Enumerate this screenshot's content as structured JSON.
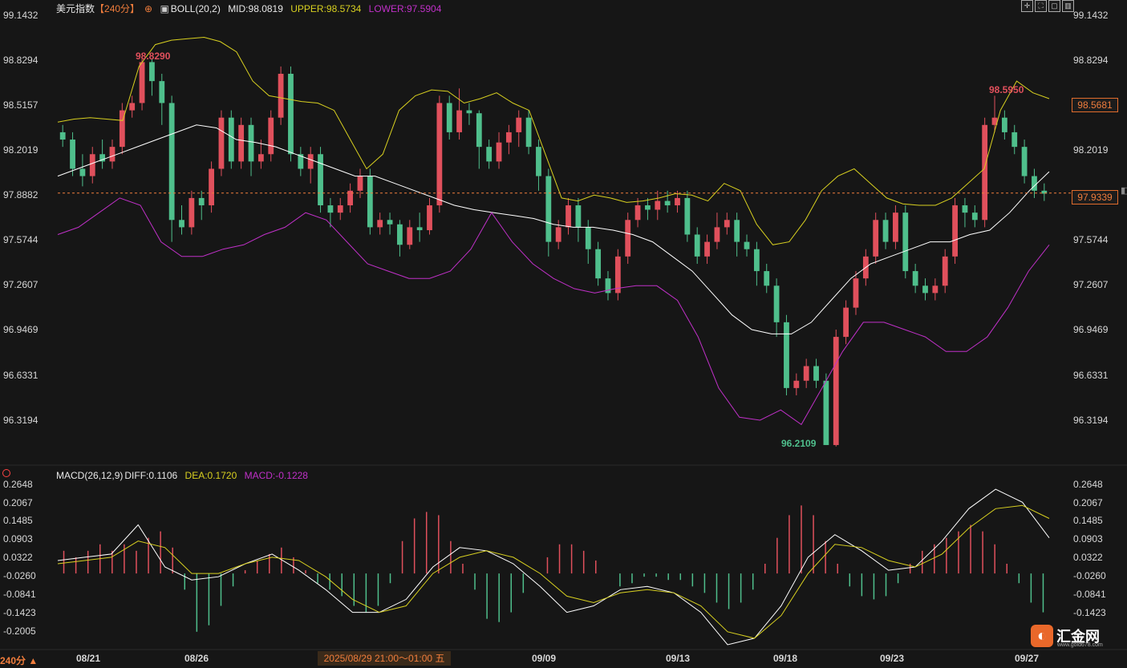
{
  "header": {
    "instrument": "美元指数",
    "period": "【240分】",
    "boll_label": "BOLL(20,2)",
    "mid": "MID:98.0819",
    "upper": "UPPER:98.5734",
    "lower": "LOWER:97.5904"
  },
  "macd_header": {
    "label": "MACD(26,12,9)",
    "diff": "DIFF:0.1106",
    "dea": "DEA:0.1720",
    "macd": "MACD:-0.1228"
  },
  "price_ticks": [
    "99.1432",
    "98.8294",
    "98.5157",
    "98.2019",
    "97.8882",
    "97.5744",
    "97.2607",
    "96.9469",
    "96.6331",
    "96.3194"
  ],
  "macd_ticks": [
    "0.2648",
    "0.2067",
    "0.1485",
    "0.0903",
    "0.0322",
    "-0.0260",
    "-0.0841",
    "-0.1423",
    "-0.2005"
  ],
  "dates": [
    "08/21",
    "08/26",
    "09/09",
    "09/13",
    "09/18",
    "09/23",
    "09/27"
  ],
  "crosshair_date": "2025/08/29 21:00～01:00 五",
  "period_button": "240分 ▲",
  "current_price": "97.9339",
  "upper_tag": "98.5681",
  "high1_label": "98.8290",
  "high2_label": "98.5950",
  "low_label": "96.2109",
  "logo": {
    "text": "汇金网",
    "sub": "www.gold678.com"
  },
  "colors": {
    "up": "#e0505c",
    "down": "#4fbf8c",
    "upper": "#d8d020",
    "mid": "#ffffff",
    "lower": "#c030c8",
    "accent": "#f07d3c"
  },
  "chart_data": {
    "type": "candlestick",
    "title": "美元指数 240分",
    "ylim": [
      96.1,
      99.2
    ],
    "macd_ylim": [
      -0.23,
      0.29
    ],
    "candles": [
      [
        98.35,
        98.3,
        98.4,
        98.25
      ],
      [
        98.3,
        98.1,
        98.35,
        98.05
      ],
      [
        98.1,
        98.05,
        98.2,
        97.98
      ],
      [
        98.05,
        98.2,
        98.25,
        98.0
      ],
      [
        98.2,
        98.15,
        98.3,
        98.1
      ],
      [
        98.15,
        98.25,
        98.3,
        98.1
      ],
      [
        98.25,
        98.5,
        98.55,
        98.2
      ],
      [
        98.5,
        98.55,
        98.6,
        98.45
      ],
      [
        98.55,
        98.83,
        98.85,
        98.5
      ],
      [
        98.83,
        98.7,
        98.85,
        98.6
      ],
      [
        98.7,
        98.55,
        98.75,
        98.4
      ],
      [
        98.55,
        97.75,
        98.6,
        97.6
      ],
      [
        97.75,
        97.7,
        97.85,
        97.65
      ],
      [
        97.7,
        97.9,
        97.95,
        97.65
      ],
      [
        97.9,
        97.85,
        97.95,
        97.75
      ],
      [
        97.85,
        98.1,
        98.15,
        97.8
      ],
      [
        98.1,
        98.45,
        98.5,
        98.05
      ],
      [
        98.45,
        98.15,
        98.5,
        98.1
      ],
      [
        98.15,
        98.4,
        98.45,
        98.1
      ],
      [
        98.4,
        98.15,
        98.45,
        98.05
      ],
      [
        98.15,
        98.2,
        98.3,
        98.1
      ],
      [
        98.2,
        98.45,
        98.5,
        98.15
      ],
      [
        98.45,
        98.75,
        98.8,
        98.4
      ],
      [
        98.75,
        98.2,
        98.8,
        98.15
      ],
      [
        98.2,
        98.1,
        98.25,
        98.05
      ],
      [
        98.1,
        98.2,
        98.25,
        98.0
      ],
      [
        98.2,
        97.85,
        98.25,
        97.8
      ],
      [
        97.85,
        97.8,
        97.9,
        97.7
      ],
      [
        97.8,
        97.85,
        97.9,
        97.75
      ],
      [
        97.85,
        97.95,
        98.0,
        97.8
      ],
      [
        97.95,
        98.05,
        98.1,
        97.9
      ],
      [
        98.05,
        97.7,
        98.1,
        97.65
      ],
      [
        97.7,
        97.75,
        97.8,
        97.65
      ],
      [
        97.75,
        97.72,
        97.8,
        97.65
      ],
      [
        97.72,
        97.58,
        97.75,
        97.5
      ],
      [
        97.58,
        97.7,
        97.75,
        97.55
      ],
      [
        97.7,
        97.68,
        97.8,
        97.6
      ],
      [
        97.68,
        97.85,
        97.9,
        97.65
      ],
      [
        97.85,
        98.55,
        98.6,
        97.8
      ],
      [
        98.55,
        98.35,
        98.6,
        98.3
      ],
      [
        98.35,
        98.5,
        98.65,
        98.3
      ],
      [
        98.5,
        98.48,
        98.55,
        98.4
      ],
      [
        98.48,
        98.25,
        98.5,
        98.1
      ],
      [
        98.25,
        98.15,
        98.3,
        98.1
      ],
      [
        98.15,
        98.28,
        98.35,
        98.1
      ],
      [
        98.28,
        98.35,
        98.4,
        98.2
      ],
      [
        98.35,
        98.45,
        98.5,
        98.25
      ],
      [
        98.45,
        98.25,
        98.5,
        98.2
      ],
      [
        98.25,
        98.05,
        98.3,
        97.95
      ],
      [
        98.05,
        97.6,
        98.1,
        97.5
      ],
      [
        97.6,
        97.7,
        97.75,
        97.55
      ],
      [
        97.7,
        97.85,
        97.9,
        97.65
      ],
      [
        97.85,
        97.7,
        97.9,
        97.6
      ],
      [
        97.7,
        97.55,
        97.75,
        97.45
      ],
      [
        97.55,
        97.35,
        97.6,
        97.3
      ],
      [
        97.35,
        97.25,
        97.4,
        97.2
      ],
      [
        97.25,
        97.5,
        97.55,
        97.2
      ],
      [
        97.5,
        97.75,
        97.8,
        97.45
      ],
      [
        97.75,
        97.85,
        97.9,
        97.7
      ],
      [
        97.85,
        97.82,
        97.9,
        97.75
      ],
      [
        97.82,
        97.88,
        97.95,
        97.75
      ],
      [
        97.88,
        97.85,
        97.95,
        97.8
      ],
      [
        97.85,
        97.9,
        97.95,
        97.8
      ],
      [
        97.9,
        97.65,
        97.95,
        97.6
      ],
      [
        97.65,
        97.5,
        97.7,
        97.45
      ],
      [
        97.5,
        97.6,
        97.65,
        97.45
      ],
      [
        97.6,
        97.7,
        97.8,
        97.55
      ],
      [
        97.7,
        97.75,
        97.8,
        97.65
      ],
      [
        97.75,
        97.6,
        97.8,
        97.5
      ],
      [
        97.6,
        97.55,
        97.65,
        97.5
      ],
      [
        97.55,
        97.4,
        97.6,
        97.3
      ],
      [
        97.4,
        97.3,
        97.45,
        97.25
      ],
      [
        97.3,
        97.05,
        97.35,
        96.95
      ],
      [
        97.05,
        96.6,
        97.1,
        96.55
      ],
      [
        96.6,
        96.65,
        96.7,
        96.55
      ],
      [
        96.65,
        96.75,
        96.8,
        96.6
      ],
      [
        96.75,
        96.65,
        96.8,
        96.6
      ],
      [
        96.65,
        96.21,
        96.7,
        96.21
      ],
      [
        96.21,
        96.95,
        97.0,
        96.2
      ],
      [
        96.95,
        97.15,
        97.2,
        96.9
      ],
      [
        97.15,
        97.35,
        97.4,
        97.1
      ],
      [
        97.35,
        97.5,
        97.55,
        97.3
      ],
      [
        97.5,
        97.75,
        97.8,
        97.45
      ],
      [
        97.75,
        97.6,
        97.8,
        97.55
      ],
      [
        97.6,
        97.8,
        97.85,
        97.55
      ],
      [
        97.8,
        97.4,
        97.85,
        97.35
      ],
      [
        97.4,
        97.3,
        97.45,
        97.25
      ],
      [
        97.3,
        97.25,
        97.35,
        97.2
      ],
      [
        97.25,
        97.3,
        97.35,
        97.2
      ],
      [
        97.3,
        97.5,
        97.55,
        97.25
      ],
      [
        97.5,
        97.85,
        97.9,
        97.45
      ],
      [
        97.85,
        97.8,
        97.9,
        97.7
      ],
      [
        97.8,
        97.75,
        97.85,
        97.7
      ],
      [
        97.75,
        98.4,
        98.45,
        97.7
      ],
      [
        98.4,
        98.45,
        98.6,
        98.35
      ],
      [
        98.45,
        98.35,
        98.5,
        98.3
      ],
      [
        98.35,
        98.25,
        98.4,
        98.2
      ],
      [
        98.25,
        98.05,
        98.3,
        98.0
      ],
      [
        98.05,
        97.95,
        98.1,
        97.9
      ],
      [
        97.95,
        97.93,
        98.0,
        97.88
      ]
    ],
    "upper": [
      98.42,
      98.44,
      98.45,
      98.44,
      98.43,
      98.8,
      98.95,
      98.98,
      98.99,
      99.0,
      98.97,
      98.9,
      98.7,
      98.6,
      98.58,
      98.56,
      98.55,
      98.5,
      98.3,
      98.1,
      98.2,
      98.5,
      98.6,
      98.64,
      98.63,
      98.55,
      98.58,
      98.62,
      98.55,
      98.5,
      98.2,
      97.9,
      97.88,
      97.92,
      97.9,
      97.87,
      97.88,
      97.9,
      97.93,
      97.92,
      97.88,
      98.0,
      97.95,
      97.72,
      97.58,
      97.6,
      97.75,
      97.95,
      98.05,
      98.1,
      98.0,
      97.9,
      97.86,
      97.85,
      97.85,
      97.9,
      98.0,
      98.1,
      98.5,
      98.7,
      98.62,
      98.58
    ],
    "mid": [
      98.05,
      98.1,
      98.15,
      98.2,
      98.25,
      98.3,
      98.35,
      98.4,
      98.38,
      98.3,
      98.28,
      98.25,
      98.2,
      98.15,
      98.1,
      98.05,
      98.05,
      98.0,
      97.95,
      97.9,
      97.85,
      97.82,
      97.8,
      97.78,
      97.76,
      97.72,
      97.7,
      97.7,
      97.68,
      97.65,
      97.6,
      97.5,
      97.4,
      97.25,
      97.1,
      97.0,
      96.97,
      96.97,
      97.05,
      97.2,
      97.35,
      97.45,
      97.5,
      97.55,
      97.6,
      97.6,
      97.65,
      97.68,
      97.8,
      97.95,
      98.08
    ],
    "lower": [
      97.65,
      97.7,
      97.8,
      97.9,
      97.85,
      97.6,
      97.5,
      97.5,
      97.55,
      97.58,
      97.65,
      97.7,
      97.8,
      97.75,
      97.6,
      97.45,
      97.4,
      97.35,
      97.35,
      97.4,
      97.55,
      97.8,
      97.6,
      97.45,
      97.35,
      97.28,
      97.25,
      97.28,
      97.3,
      97.3,
      97.2,
      96.95,
      96.6,
      96.4,
      96.38,
      96.45,
      96.35,
      96.6,
      96.85,
      97.05,
      97.05,
      97.0,
      96.95,
      96.85,
      96.85,
      96.95,
      97.15,
      97.4,
      97.58
    ],
    "macd_diff": [
      0.04,
      0.05,
      0.06,
      0.15,
      0.02,
      -0.02,
      -0.01,
      0.03,
      0.06,
      0.01,
      -0.05,
      -0.12,
      -0.12,
      -0.08,
      0.02,
      0.08,
      0.07,
      0.03,
      -0.04,
      -0.12,
      -0.1,
      -0.05,
      -0.04,
      -0.06,
      -0.12,
      -0.22,
      -0.2,
      -0.1,
      0.05,
      0.12,
      0.07,
      0.01,
      0.02,
      0.1,
      0.2,
      0.26,
      0.22,
      0.11
    ],
    "macd_dea": [
      0.03,
      0.04,
      0.05,
      0.1,
      0.08,
      0.0,
      0.0,
      0.03,
      0.05,
      0.04,
      -0.01,
      -0.08,
      -0.12,
      -0.1,
      0.0,
      0.05,
      0.07,
      0.05,
      0.0,
      -0.07,
      -0.09,
      -0.06,
      -0.05,
      -0.06,
      -0.1,
      -0.18,
      -0.2,
      -0.13,
      0.0,
      0.09,
      0.08,
      0.04,
      0.02,
      0.06,
      0.14,
      0.2,
      0.21,
      0.17
    ],
    "macd_hist": [
      0.07,
      0.05,
      0.07,
      0.09,
      0.07,
      0.09,
      0.07,
      0.11,
      0.13,
      0.08,
      -0.05,
      -0.18,
      -0.16,
      -0.1,
      -0.04,
      0.01,
      0.04,
      0.06,
      0.08,
      0.05,
      0.01,
      -0.03,
      -0.05,
      -0.07,
      -0.1,
      -0.12,
      -0.1,
      -0.03,
      0.1,
      0.17,
      0.19,
      0.18,
      0.1,
      0.03,
      -0.05,
      -0.14,
      -0.15,
      -0.12,
      -0.06,
      0.0,
      0.05,
      0.09,
      0.09,
      0.07,
      0.04,
      0.0,
      -0.04,
      -0.03,
      -0.01,
      -0.01,
      -0.02,
      -0.02,
      -0.04,
      -0.06,
      -0.09,
      -0.11,
      -0.09,
      -0.05,
      0.03,
      0.11,
      0.18,
      0.21,
      0.18,
      0.1,
      0.03,
      -0.04,
      -0.07,
      -0.08,
      -0.07,
      -0.03,
      0.03,
      0.07,
      0.09,
      0.11,
      0.13,
      0.15,
      0.13,
      0.09,
      0.03,
      -0.03,
      -0.09,
      -0.12
    ]
  }
}
